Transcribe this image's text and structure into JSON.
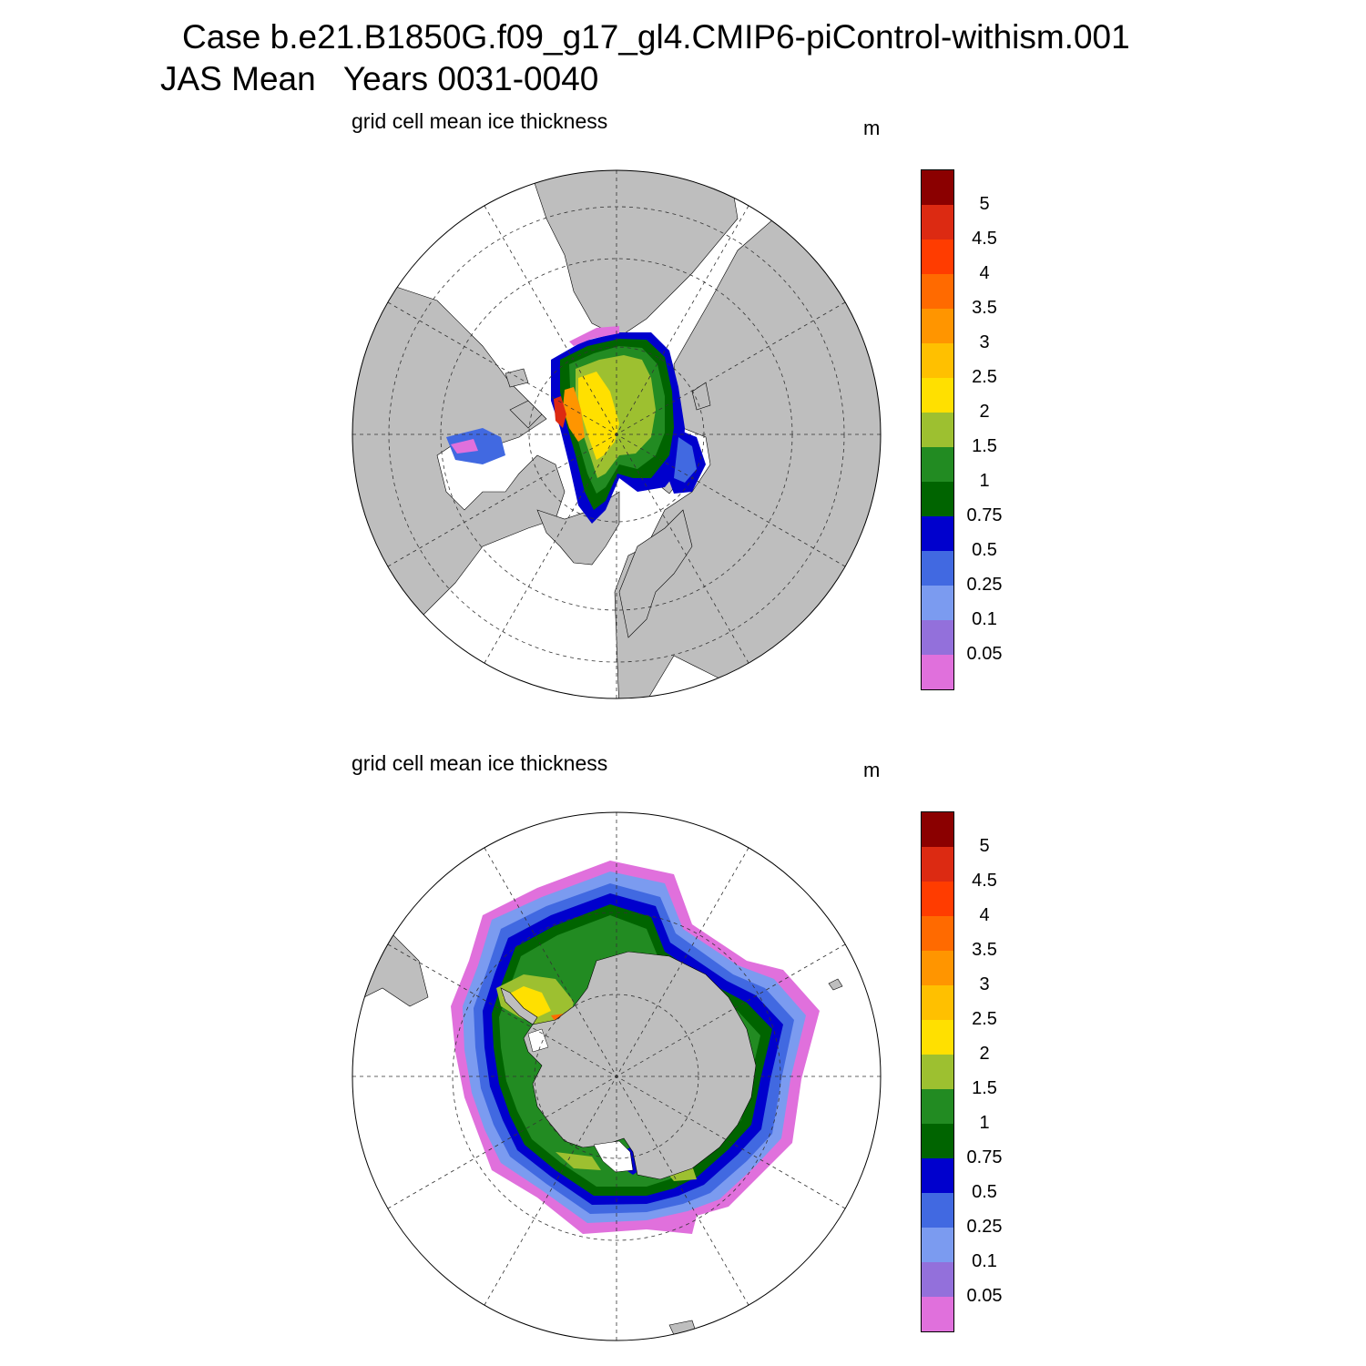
{
  "header": {
    "case_line": "Case b.e21.B1850G.f09_g17_gl4.CMIP6-piControl-withism.001",
    "period_line": "JAS Mean   Years 0031-0040"
  },
  "panels": [
    {
      "id": "north",
      "title": "grid cell mean ice thickness",
      "units": "m"
    },
    {
      "id": "south",
      "title": "grid cell mean ice thickness",
      "units": "m"
    }
  ],
  "colorbar": {
    "levels": [
      "5",
      "4.5",
      "4",
      "3.5",
      "3",
      "2.5",
      "2",
      "1.5",
      "1",
      "0.75",
      "0.5",
      "0.25",
      "0.1",
      "0.05"
    ],
    "colors": [
      "#8b0000",
      "#dc2a12",
      "#ff3c00",
      "#ff6a00",
      "#ff9500",
      "#ffc000",
      "#ffe000",
      "#9dc030",
      "#228b22",
      "#006400",
      "#0000cd",
      "#4169e1",
      "#7b9bf0",
      "#9370db",
      "#e070dc"
    ]
  },
  "map_colors": {
    "land": "#bebebe",
    "ocean": "#ffffff"
  }
}
